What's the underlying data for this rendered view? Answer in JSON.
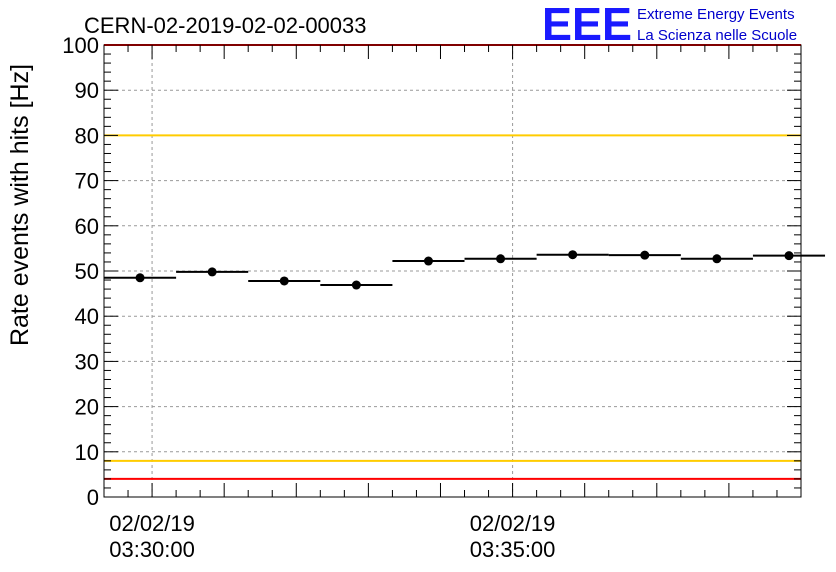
{
  "chart_data": {
    "type": "scatter",
    "title": "CERN-02-2019-02-02-00033",
    "ylabel": "Rate events with hits [Hz]",
    "xlabel": "",
    "ylim": [
      0,
      100
    ],
    "yticks": [
      0,
      10,
      20,
      30,
      40,
      50,
      60,
      70,
      80,
      90,
      100
    ],
    "xlim": [
      "02/02/19 03:29:20",
      "02/02/19 03:39:00"
    ],
    "xtick_labels": [
      {
        "time": "02/02/19 03:30:00",
        "date": "02/02/19",
        "clock": "03:30:00"
      },
      {
        "time": "02/02/19 03:35:00",
        "date": "02/02/19",
        "clock": "03:35:00"
      }
    ],
    "grid": true,
    "bin_width_minutes": 1,
    "points": [
      {
        "x": "02/02/19 03:29:50",
        "y": 48.5
      },
      {
        "x": "02/02/19 03:30:50",
        "y": 49.8
      },
      {
        "x": "02/02/19 03:31:50",
        "y": 47.8
      },
      {
        "x": "02/02/19 03:32:50",
        "y": 46.9
      },
      {
        "x": "02/02/19 03:33:50",
        "y": 52.2
      },
      {
        "x": "02/02/19 03:34:50",
        "y": 52.7
      },
      {
        "x": "02/02/19 03:35:50",
        "y": 53.6
      },
      {
        "x": "02/02/19 03:36:50",
        "y": 53.5
      },
      {
        "x": "02/02/19 03:37:50",
        "y": 52.7
      },
      {
        "x": "02/02/19 03:38:50",
        "y": 53.4
      }
    ],
    "reference_lines": [
      {
        "y": 100,
        "color": "#ff0000"
      },
      {
        "y": 80,
        "color": "#ffcc00"
      },
      {
        "y": 8,
        "color": "#ffcc00"
      },
      {
        "y": 4,
        "color": "#ff0000"
      }
    ]
  },
  "logo": {
    "mark": "EEE",
    "line1": "Extreme Energy Events",
    "line2": "La Scienza nelle Scuole",
    "color": "#1a1aff"
  }
}
